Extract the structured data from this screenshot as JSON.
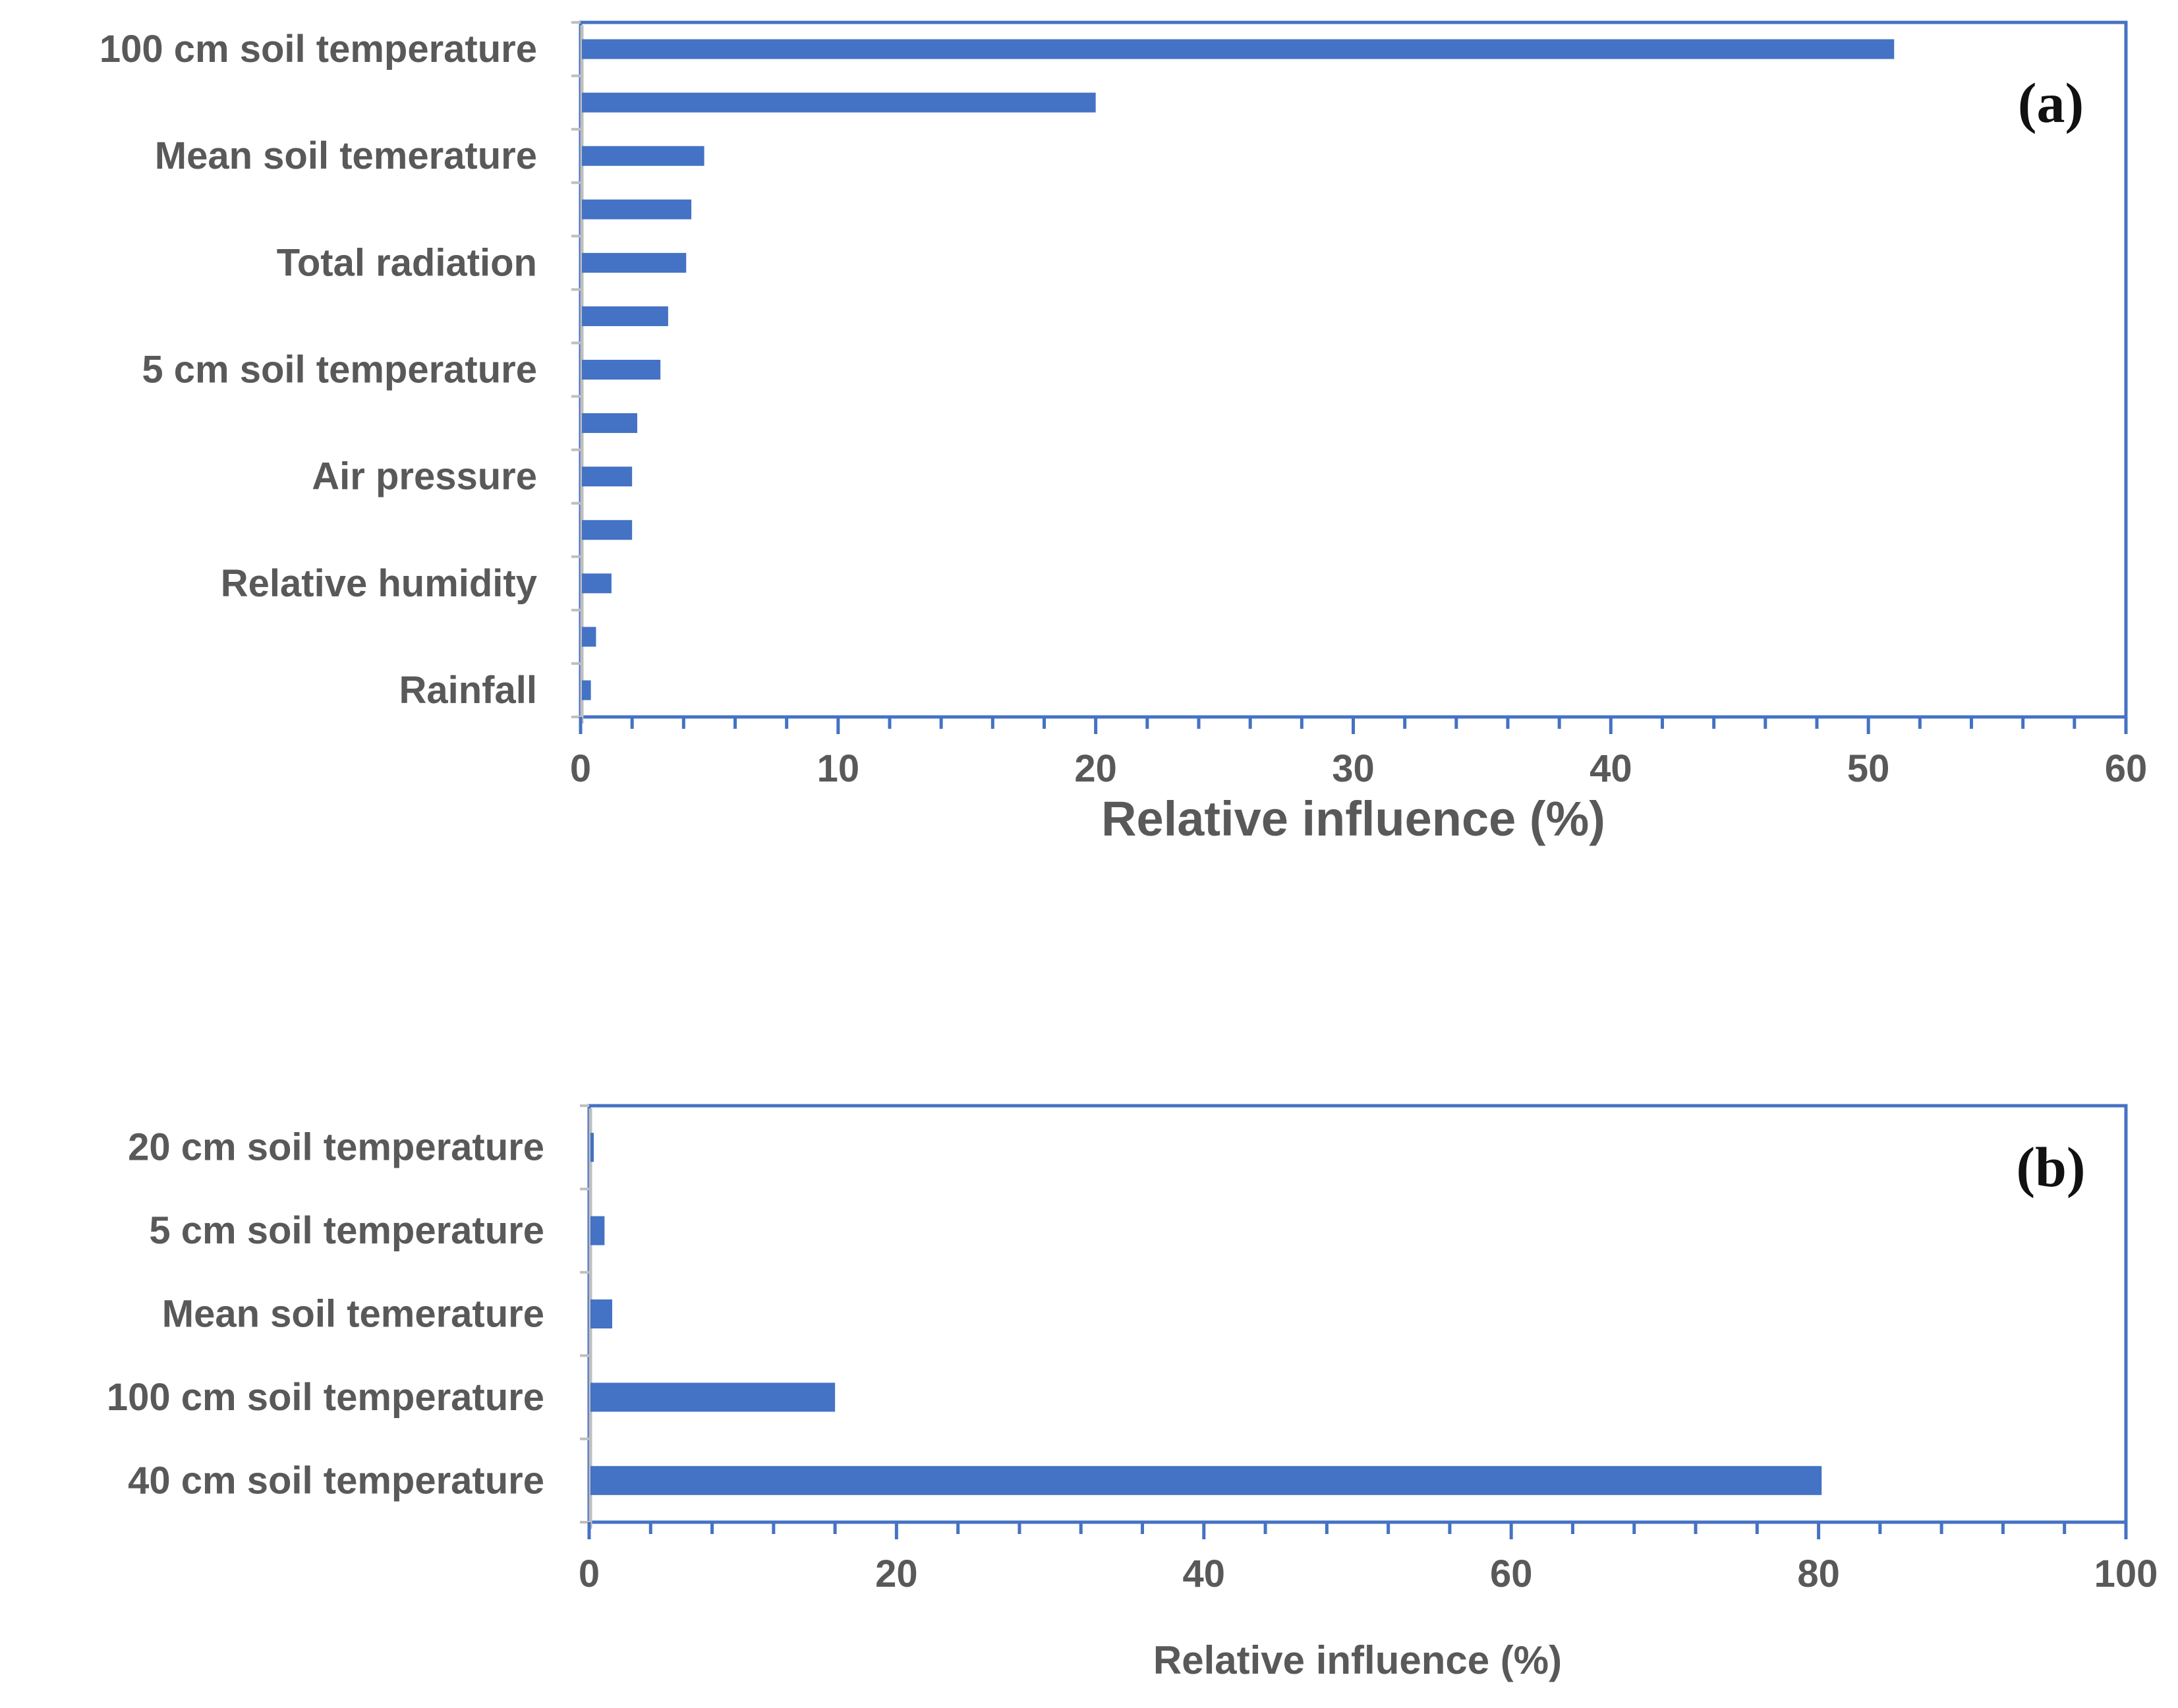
{
  "chart_data": [
    {
      "type": "bar",
      "orientation": "horizontal",
      "panel_label": "(a)",
      "categories": [
        "100 cm soil temperature",
        "",
        "Mean soil temerature",
        "",
        "Total radiation",
        "",
        "5 cm soil temperature",
        "",
        "Air pressure",
        "",
        "Relative humidity",
        "",
        "Rainfall"
      ],
      "values": [
        51.0,
        20.0,
        4.8,
        4.3,
        4.1,
        3.4,
        3.1,
        2.2,
        2.0,
        2.0,
        1.2,
        0.6,
        0.4
      ],
      "xlabel": "Relative influence (%)",
      "ylabel": "",
      "xlim": [
        0,
        60
      ],
      "xticks": [
        "0",
        "10",
        "20",
        "30",
        "40",
        "50",
        "60"
      ],
      "minor_ticks_per_major": 5,
      "grid": false,
      "color": "#4472C4",
      "frame_color": "#4472C4"
    },
    {
      "type": "bar",
      "orientation": "horizontal",
      "panel_label": "(b)",
      "categories": [
        "20 cm soil temperature",
        "5 cm soil temperature",
        "Mean soil temerature",
        "100 cm soil temperature",
        "40 cm soil temperature"
      ],
      "values": [
        0.3,
        1.0,
        1.5,
        16.0,
        80.2
      ],
      "xlabel": "Relative influence (%)",
      "ylabel": "",
      "xlim": [
        0,
        100
      ],
      "xticks": [
        "0",
        "20",
        "40",
        "60",
        "80",
        "100"
      ],
      "minor_ticks_per_major": 5,
      "grid": false,
      "color": "#4472C4",
      "frame_color": "#4472C4"
    }
  ]
}
